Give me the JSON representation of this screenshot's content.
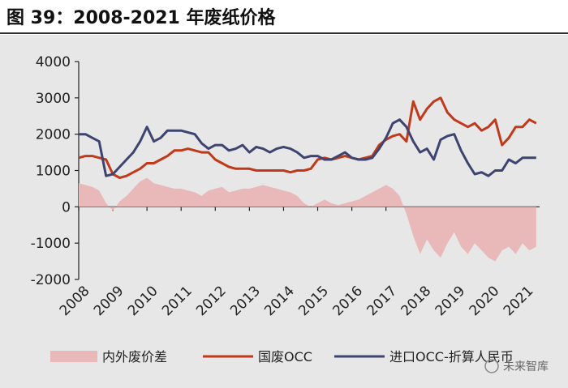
{
  "title": "图 39：2008-2021 年废纸价格",
  "watermark": "未来智库",
  "colors": {
    "spread": "#e9b9b9",
    "domestic": "#c0391b",
    "imported": "#3e4470",
    "axis": "#222222"
  },
  "chart_data": {
    "type": "line",
    "title": "图 39：2008-2021 年废纸价格",
    "xlabel": "",
    "ylabel": "",
    "ylim": [
      -2000,
      4000
    ],
    "xlim": [
      2008,
      2021.5
    ],
    "yticks": [
      4000,
      3000,
      2000,
      1000,
      0,
      -1000,
      -2000
    ],
    "xticks": [
      "2008",
      "2009",
      "2010",
      "2011",
      "2012",
      "2013",
      "2014",
      "2015",
      "2016",
      "2017",
      "2018",
      "2019",
      "2020",
      "2021"
    ],
    "grid": false,
    "legend_position": "bottom",
    "series": [
      {
        "name": "内外废价差",
        "kind": "area",
        "x": [
          2008.0,
          2008.2,
          2008.4,
          2008.6,
          2008.8,
          2009.0,
          2009.2,
          2009.4,
          2009.6,
          2009.8,
          2010.0,
          2010.2,
          2010.4,
          2010.6,
          2010.8,
          2011.0,
          2011.2,
          2011.4,
          2011.6,
          2011.8,
          2012.0,
          2012.2,
          2012.4,
          2012.6,
          2012.8,
          2013.0,
          2013.2,
          2013.4,
          2013.6,
          2013.8,
          2014.0,
          2014.2,
          2014.4,
          2014.6,
          2014.8,
          2015.0,
          2015.2,
          2015.4,
          2015.6,
          2015.8,
          2016.0,
          2016.2,
          2016.4,
          2016.6,
          2016.8,
          2017.0,
          2017.2,
          2017.4,
          2017.6,
          2017.8,
          2018.0,
          2018.2,
          2018.4,
          2018.6,
          2018.8,
          2019.0,
          2019.2,
          2019.4,
          2019.6,
          2019.8,
          2020.0,
          2020.2,
          2020.4,
          2020.6,
          2020.8,
          2021.0,
          2021.2,
          2021.4
        ],
        "values": [
          650,
          600,
          550,
          450,
          100,
          -100,
          150,
          300,
          500,
          700,
          800,
          650,
          600,
          550,
          500,
          500,
          450,
          400,
          300,
          450,
          500,
          550,
          400,
          450,
          500,
          500,
          550,
          600,
          550,
          500,
          450,
          400,
          300,
          100,
          0,
          100,
          200,
          100,
          50,
          100,
          150,
          200,
          300,
          400,
          500,
          600,
          500,
          300,
          -200,
          -800,
          -1300,
          -900,
          -1200,
          -1400,
          -1000,
          -700,
          -1100,
          -1300,
          -1000,
          -1200,
          -1400,
          -1500,
          -1200,
          -1100,
          -1300,
          -1000,
          -1200,
          -1100
        ]
      },
      {
        "name": "国废OCC",
        "kind": "line",
        "x": [
          2008.0,
          2008.2,
          2008.4,
          2008.6,
          2008.8,
          2009.0,
          2009.2,
          2009.4,
          2009.6,
          2009.8,
          2010.0,
          2010.2,
          2010.4,
          2010.6,
          2010.8,
          2011.0,
          2011.2,
          2011.4,
          2011.6,
          2011.8,
          2012.0,
          2012.2,
          2012.4,
          2012.6,
          2012.8,
          2013.0,
          2013.2,
          2013.4,
          2013.6,
          2013.8,
          2014.0,
          2014.2,
          2014.4,
          2014.6,
          2014.8,
          2015.0,
          2015.2,
          2015.4,
          2015.6,
          2015.8,
          2016.0,
          2016.2,
          2016.4,
          2016.6,
          2016.8,
          2017.0,
          2017.2,
          2017.4,
          2017.6,
          2017.8,
          2018.0,
          2018.2,
          2018.4,
          2018.6,
          2018.8,
          2019.0,
          2019.2,
          2019.4,
          2019.6,
          2019.8,
          2020.0,
          2020.2,
          2020.4,
          2020.6,
          2020.8,
          2021.0,
          2021.2,
          2021.4
        ],
        "values": [
          1350,
          1400,
          1400,
          1350,
          1300,
          900,
          800,
          850,
          950,
          1050,
          1200,
          1200,
          1300,
          1400,
          1550,
          1550,
          1600,
          1550,
          1500,
          1500,
          1300,
          1200,
          1100,
          1050,
          1050,
          1050,
          1000,
          1000,
          1000,
          1000,
          1000,
          950,
          1000,
          1000,
          1050,
          1300,
          1350,
          1300,
          1350,
          1400,
          1350,
          1300,
          1350,
          1400,
          1700,
          1850,
          1950,
          2000,
          1800,
          2900,
          2400,
          2700,
          2900,
          3000,
          2600,
          2400,
          2300,
          2200,
          2300,
          2100,
          2200,
          2400,
          1700,
          1900,
          2200,
          2200,
          2400,
          2300
        ]
      },
      {
        "name": "进口OCC-折算人民币",
        "kind": "line",
        "x": [
          2008.0,
          2008.2,
          2008.4,
          2008.6,
          2008.8,
          2009.0,
          2009.2,
          2009.4,
          2009.6,
          2009.8,
          2010.0,
          2010.2,
          2010.4,
          2010.6,
          2010.8,
          2011.0,
          2011.2,
          2011.4,
          2011.6,
          2011.8,
          2012.0,
          2012.2,
          2012.4,
          2012.6,
          2012.8,
          2013.0,
          2013.2,
          2013.4,
          2013.6,
          2013.8,
          2014.0,
          2014.2,
          2014.4,
          2014.6,
          2014.8,
          2015.0,
          2015.2,
          2015.4,
          2015.6,
          2015.8,
          2016.0,
          2016.2,
          2016.4,
          2016.6,
          2016.8,
          2017.0,
          2017.2,
          2017.4,
          2017.6,
          2017.8,
          2018.0,
          2018.2,
          2018.4,
          2018.6,
          2018.8,
          2019.0,
          2019.2,
          2019.4,
          2019.6,
          2019.8,
          2020.0,
          2020.2,
          2020.4,
          2020.6,
          2020.8,
          2021.0,
          2021.2,
          2021.4
        ],
        "values": [
          2000,
          2000,
          1900,
          1800,
          850,
          900,
          1100,
          1300,
          1500,
          1800,
          2200,
          1800,
          1900,
          2100,
          2100,
          2100,
          2050,
          2000,
          1750,
          1600,
          1700,
          1700,
          1550,
          1600,
          1700,
          1500,
          1650,
          1600,
          1500,
          1600,
          1650,
          1600,
          1500,
          1350,
          1400,
          1400,
          1300,
          1300,
          1400,
          1500,
          1350,
          1300,
          1300,
          1350,
          1600,
          1900,
          2300,
          2400,
          2200,
          1800,
          1500,
          1600,
          1300,
          1850,
          1950,
          2000,
          1550,
          1200,
          900,
          950,
          850,
          1000,
          1000,
          1300,
          1200,
          1350,
          1350,
          1350
        ]
      }
    ]
  }
}
